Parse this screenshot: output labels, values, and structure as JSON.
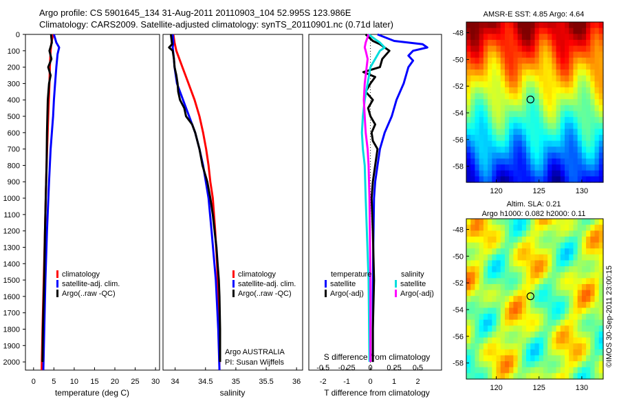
{
  "header": {
    "line1": "Argo profile: CS 5901645_134 31-Aug-2011 20110903_104 52.995S 123.986E",
    "line2": "Climatology: CARS2009. Satellite-adjusted climatology: synTS_20110901.nc (0.71d later)"
  },
  "colors": {
    "climatology": "#ff0000",
    "satellite": "#0000ff",
    "argo": "#000000",
    "sal_satellite": "#00dddd",
    "sal_argo": "#ff00ff"
  },
  "chart_data": [
    {
      "type": "line",
      "id": "temperature",
      "xlabel": "temperature (deg C)",
      "xlim": [
        -2,
        31
      ],
      "xticks": [
        0,
        5,
        10,
        15,
        20,
        25,
        30
      ],
      "ylim": [
        2050,
        0
      ],
      "yticks": [
        0,
        100,
        200,
        300,
        400,
        500,
        600,
        700,
        800,
        900,
        1000,
        1100,
        1200,
        1300,
        1400,
        1500,
        1600,
        1700,
        1800,
        1900,
        2000
      ],
      "legend": [
        "climatology",
        "satellite-adj. clim.",
        "Argo(..raw -QC)"
      ],
      "series": [
        {
          "name": "climatology",
          "y": [
            0,
            50,
            100,
            200,
            300,
            500,
            800,
            1000,
            1200,
            1500,
            1800,
            2050
          ],
          "x": [
            4.8,
            4.4,
            4.2,
            4.0,
            3.9,
            3.6,
            3.2,
            3.0,
            2.8,
            2.5,
            2.2,
            2.0
          ]
        },
        {
          "name": "satellite-adj. clim.",
          "y": [
            0,
            50,
            80,
            120,
            200,
            300,
            400,
            500,
            700,
            900,
            1200,
            1500,
            2050
          ],
          "x": [
            5.0,
            5.6,
            6.3,
            5.9,
            5.6,
            5.3,
            5.0,
            4.8,
            4.2,
            3.8,
            3.3,
            2.9,
            2.4
          ]
        },
        {
          "name": "Argo(..raw -QC)",
          "y": [
            0,
            50,
            100,
            150,
            200,
            250,
            300,
            400,
            500,
            600,
            800,
            1000,
            1200,
            1500,
            1800,
            2000
          ],
          "x": [
            4.3,
            4.5,
            3.9,
            4.4,
            3.6,
            4.2,
            3.8,
            3.5,
            3.4,
            3.3,
            3.2,
            3.0,
            2.8,
            2.6,
            2.3,
            2.2
          ]
        }
      ]
    },
    {
      "type": "line",
      "id": "salinity",
      "xlabel": "salinity",
      "xlim": [
        33.8,
        36.1
      ],
      "xticks": [
        34,
        34.5,
        35,
        35.5,
        36
      ],
      "ylim": [
        2050,
        0
      ],
      "legend": [
        "climatology",
        "satellite-adj. clim.",
        "Argo(..raw -QC)"
      ],
      "annotation": [
        "Argo AUSTRALIA",
        "PI: Susan Wijffels"
      ],
      "series": [
        {
          "name": "climatology",
          "y": [
            0,
            50,
            100,
            200,
            300,
            400,
            500,
            600,
            700,
            800,
            900,
            1000,
            1200,
            1400,
            1600,
            1800,
            2050
          ],
          "x": [
            33.97,
            33.99,
            34.02,
            34.12,
            34.22,
            34.32,
            34.4,
            34.46,
            34.51,
            34.55,
            34.58,
            34.62,
            34.66,
            34.69,
            34.71,
            34.72,
            34.73
          ]
        },
        {
          "name": "satellite-adj. clim.",
          "y": [
            0,
            50,
            80,
            150,
            200,
            300,
            400,
            500,
            600,
            700,
            800,
            1000,
            1200,
            1500,
            1800,
            2050
          ],
          "x": [
            33.96,
            33.97,
            33.96,
            33.98,
            33.99,
            34.03,
            34.13,
            34.23,
            34.33,
            34.4,
            34.46,
            34.55,
            34.6,
            34.67,
            34.71,
            34.73
          ]
        },
        {
          "name": "Argo(..raw -QC)",
          "y": [
            0,
            60,
            80,
            100,
            150,
            200,
            250,
            300,
            350,
            400,
            450,
            500,
            550,
            600,
            700,
            800,
            900,
            1000,
            1100,
            1200,
            1300,
            1400,
            1500,
            1600,
            1800,
            2000
          ],
          "x": [
            33.93,
            33.95,
            33.9,
            33.96,
            33.98,
            33.99,
            34.02,
            34.04,
            34.05,
            34.08,
            34.15,
            34.18,
            34.28,
            34.33,
            34.4,
            34.45,
            34.53,
            34.58,
            34.62,
            34.65,
            34.68,
            34.7,
            34.72,
            34.73,
            34.74,
            34.74
          ]
        }
      ]
    },
    {
      "type": "line",
      "id": "difference",
      "xlabel": "T difference from climatology",
      "xlim": [
        -2.6,
        3.0
      ],
      "xticks": [
        -2,
        -1,
        0,
        1,
        2
      ],
      "s_label": "S difference from climatology",
      "s_xlim": [
        -0.65,
        0.75
      ],
      "s_xticks": [
        -0.5,
        -0.25,
        0,
        0.25,
        0.5
      ],
      "s_xtick_labels": [
        "-0.5",
        "-0.25",
        "0",
        "0.25",
        "0.5"
      ],
      "ylim": [
        2050,
        0
      ],
      "legend_temperature": [
        "temperature",
        "satellite",
        "Argo(-adj)"
      ],
      "legend_salinity": [
        "salinity",
        "satellite",
        "Argo(-adj)"
      ],
      "series": [
        {
          "name": "temperature satellite",
          "axis": "T",
          "y": [
            0,
            40,
            60,
            80,
            100,
            130,
            160,
            200,
            300,
            400,
            500,
            600,
            700,
            800,
            900,
            1000,
            1300,
            1600,
            2000
          ],
          "x": [
            0.3,
            1.0,
            2.2,
            2.4,
            1.8,
            1.6,
            1.8,
            1.6,
            1.4,
            1.1,
            0.9,
            0.6,
            0.4,
            0.3,
            0.2,
            0.15,
            0.12,
            0.1,
            0.1
          ]
        },
        {
          "name": "temperature Argo(-adj)",
          "axis": "T",
          "y": [
            0,
            40,
            60,
            100,
            150,
            200,
            230,
            260,
            300,
            350,
            400,
            450,
            500,
            550,
            600,
            650,
            700,
            800,
            900,
            1000,
            1200,
            1500,
            1800,
            2000
          ],
          "x": [
            -0.2,
            0.1,
            0.4,
            0.8,
            0.5,
            0.4,
            -0.3,
            0.2,
            0.0,
            -0.2,
            0.1,
            -0.1,
            0.0,
            0.2,
            0.05,
            0.1,
            0.3,
            0.2,
            0.1,
            0.05,
            0.1,
            0.15,
            0.1,
            0.1
          ]
        },
        {
          "name": "salinity satellite",
          "axis": "S",
          "y": [
            0,
            30,
            50,
            80,
            100,
            200,
            300,
            400,
            500,
            600,
            700,
            800,
            1000,
            1500,
            2000
          ],
          "x": [
            -0.02,
            0.05,
            0.1,
            0.15,
            0.1,
            0.0,
            -0.03,
            -0.06,
            -0.08,
            -0.09,
            -0.08,
            -0.06,
            -0.05,
            -0.02,
            -0.01
          ]
        },
        {
          "name": "salinity Argo(-adj)",
          "axis": "S",
          "y": [
            0,
            50,
            80,
            100,
            150,
            200,
            250,
            300,
            400,
            500,
            600,
            700,
            800,
            1000,
            1500,
            2000
          ],
          "x": [
            -0.02,
            -0.05,
            -0.06,
            -0.05,
            -0.03,
            -0.04,
            -0.05,
            -0.06,
            -0.07,
            -0.06,
            -0.05,
            -0.03,
            -0.02,
            -0.01,
            0.0,
            0.0
          ]
        }
      ]
    },
    {
      "type": "heatmap",
      "id": "sst_map",
      "title": "AMSR-E SST: 4.85  Argo: 4.64",
      "xticks": [
        120,
        125,
        130
      ],
      "yticks": [
        -48,
        -50,
        -52,
        -54,
        -56,
        -58
      ],
      "xlim": [
        116.5,
        132.5
      ],
      "ylim": [
        -59.2,
        -47.2
      ],
      "marker": {
        "lon": 124.0,
        "lat": -53.0
      }
    },
    {
      "type": "heatmap",
      "id": "sla_map",
      "title_line1": "Altim. SLA: 0.21",
      "title_line2": "Argo h1000: 0.082  h2000: 0.11",
      "xticks": [
        120,
        125,
        130
      ],
      "yticks": [
        -48,
        -50,
        -52,
        -54,
        -56,
        -58
      ],
      "xlim": [
        116.5,
        132.5
      ],
      "ylim": [
        -59.2,
        -47.2
      ],
      "marker": {
        "lon": 124.0,
        "lat": -53.0
      },
      "watermark": "©IMOS 30-Sep-2011 23:00:15"
    }
  ]
}
